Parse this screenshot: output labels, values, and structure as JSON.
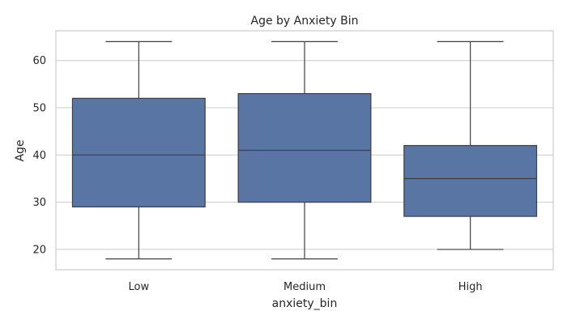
{
  "chart_data": {
    "type": "box",
    "title": "Age by Anxiety Bin",
    "xlabel": "anxiety_bin",
    "ylabel": "Age",
    "categories": [
      "Low",
      "Medium",
      "High"
    ],
    "boxes": [
      {
        "category": "Low",
        "min": 18,
        "q1": 29,
        "median": 40,
        "q3": 52,
        "max": 64
      },
      {
        "category": "Medium",
        "min": 18,
        "q1": 30,
        "median": 41,
        "q3": 53,
        "max": 64
      },
      {
        "category": "High",
        "min": 20,
        "q1": 27,
        "median": 35,
        "q3": 42,
        "max": 64
      }
    ],
    "ylim": [
      15.7,
      66.3
    ],
    "yticks": [
      20,
      30,
      40,
      50,
      60
    ],
    "grid": "horizontal",
    "box_color": "#5875a4",
    "line_color": "#3f3f3f",
    "grid_color": "#cccccc"
  }
}
